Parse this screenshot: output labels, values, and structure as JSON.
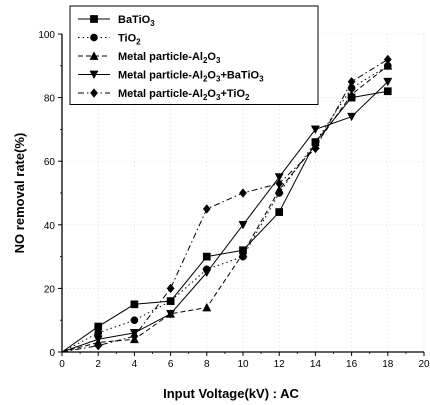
{
  "chart_data": {
    "type": "line",
    "xlabel": "Input Voltage(kV) : AC",
    "ylabel": "NO removal rate(%)",
    "xlim": [
      0,
      20
    ],
    "ylim": [
      0,
      100
    ],
    "xticks": [
      0,
      2,
      4,
      6,
      8,
      10,
      12,
      14,
      16,
      18,
      20
    ],
    "yticks": [
      0,
      20,
      40,
      60,
      80,
      100
    ],
    "x": [
      0,
      2,
      4,
      6,
      8,
      10,
      12,
      14,
      16,
      18
    ],
    "legend_position": "top-left",
    "series": [
      {
        "name": "BaTiO3",
        "name_main": "BaTiO",
        "name_sub": "3",
        "marker": "square",
        "dash": "solid",
        "color": "#000000",
        "values": [
          0,
          8,
          15,
          16,
          30,
          32,
          44,
          66,
          80,
          82
        ]
      },
      {
        "name": "TiO2",
        "name_main": "TiO",
        "name_sub": "2",
        "marker": "circle",
        "dash": "dot",
        "color": "#000000",
        "values": [
          0,
          6,
          10,
          16,
          26,
          30,
          50,
          66,
          83,
          90
        ]
      },
      {
        "name": "Metal particle-Al2O3",
        "name_main": "Metal particle-Al",
        "name_sub": "2",
        "name_main2": "O",
        "name_sub2": "3",
        "marker": "triangle-up",
        "dash": "dash",
        "color": "#000000",
        "values": [
          0,
          3,
          4,
          12,
          14,
          31,
          51,
          65,
          81,
          90
        ]
      },
      {
        "name": "Metal particle-Al2O3+BaTiO3",
        "name_main": "Metal particle-Al",
        "name_sub": "2",
        "name_main2": "O",
        "name_sub2": "3",
        "name_tail": "+BaTiO",
        "name_sub3": "3",
        "marker": "triangle-down",
        "dash": "solid",
        "color": "#000000",
        "values": [
          0,
          4,
          6,
          12,
          25,
          40,
          55,
          70,
          74,
          85
        ]
      },
      {
        "name": "Metal particle-Al2O3+TiO2",
        "name_main": "Metal particle-Al",
        "name_sub": "2",
        "name_main2": "O",
        "name_sub2": "3",
        "name_tail": "+TiO",
        "name_sub3": "2",
        "marker": "diamond",
        "dash": "dashdot",
        "color": "#000000",
        "values": [
          0,
          2,
          5,
          20,
          45,
          50,
          53,
          64,
          85,
          92
        ]
      }
    ]
  }
}
